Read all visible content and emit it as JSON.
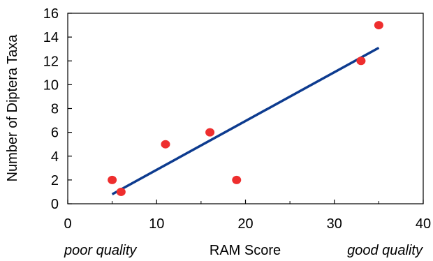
{
  "chart_data": {
    "type": "scatter",
    "title": "",
    "xlabel": "RAM Score",
    "ylabel": "Number of Diptera Taxa",
    "xlim": [
      0,
      40
    ],
    "ylim": [
      0,
      16
    ],
    "x_ticks": [
      0,
      10,
      20,
      30,
      40
    ],
    "y_ticks": [
      0,
      2,
      4,
      6,
      8,
      10,
      12,
      14,
      16
    ],
    "x_minor_ticks": [
      5,
      15,
      25,
      35
    ],
    "grid": false,
    "legend": "none",
    "annotations": {
      "left": "poor quality",
      "right": "good quality"
    },
    "points": [
      {
        "x": 5,
        "y": 2
      },
      {
        "x": 6,
        "y": 1
      },
      {
        "x": 11,
        "y": 5
      },
      {
        "x": 16,
        "y": 6
      },
      {
        "x": 19,
        "y": 2
      },
      {
        "x": 33,
        "y": 12
      },
      {
        "x": 35,
        "y": 15
      }
    ],
    "trendline": {
      "x": [
        5,
        35
      ],
      "y": [
        0.8,
        13.1
      ]
    },
    "colors": {
      "points": "#ee2e2e",
      "trendline": "#0d3b8f",
      "axes": "#000000"
    }
  }
}
